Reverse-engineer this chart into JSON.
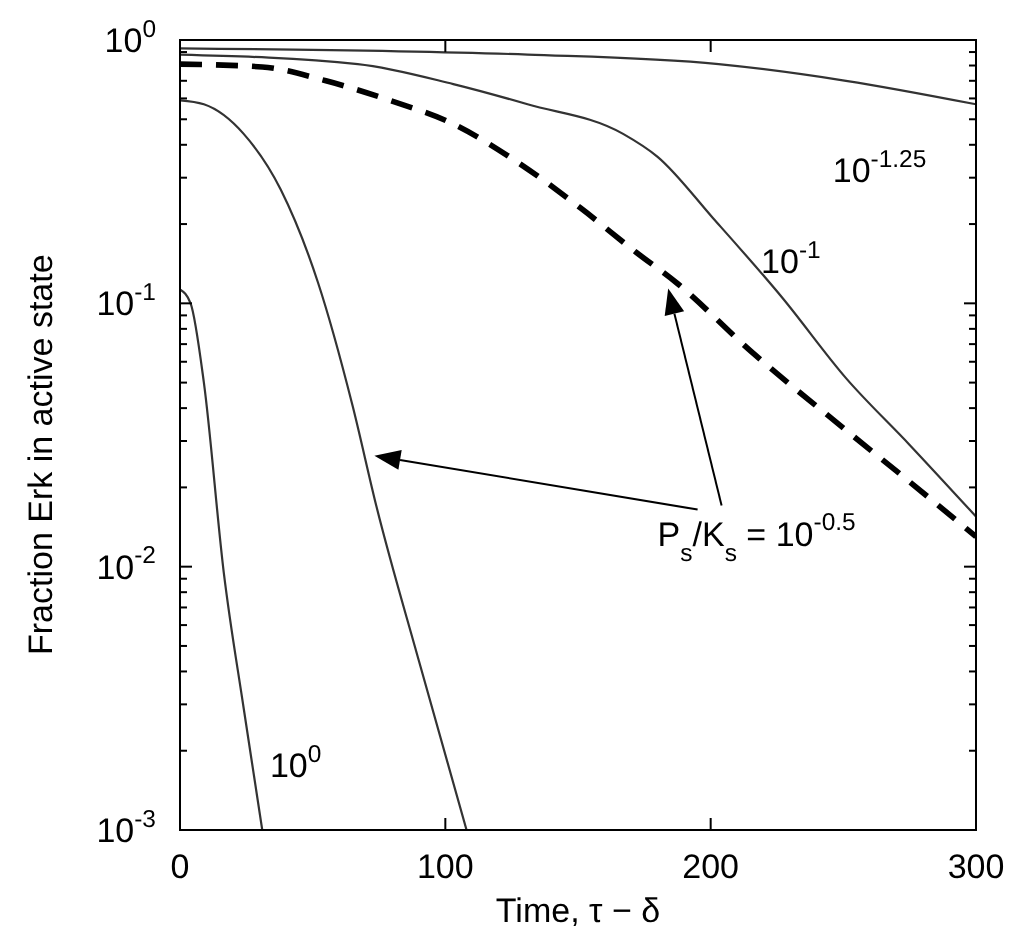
{
  "chart_data": {
    "type": "line",
    "xlabel": "Time, τ − δ",
    "ylabel": "Fraction Erk in active state",
    "log": "y",
    "marker": "none",
    "xlim": [
      0,
      300
    ],
    "xticks": [
      0,
      100,
      200,
      300
    ],
    "ylim": [
      0.001,
      1
    ],
    "yticks": [
      {
        "value": 0.001,
        "label": "10$^{-3}$"
      },
      {
        "value": 0.002,
        "label": null
      },
      {
        "value": 0.003,
        "label": null
      },
      {
        "value": 0.004,
        "label": null
      },
      {
        "value": 0.005,
        "label": null
      },
      {
        "value": 0.006,
        "label": null
      },
      {
        "value": 0.007,
        "label": null
      },
      {
        "value": 0.008,
        "label": null
      },
      {
        "value": 0.009,
        "label": null
      },
      {
        "value": 0.01,
        "label": "10$^{-2}$"
      },
      {
        "value": 0.02,
        "label": null
      },
      {
        "value": 0.03,
        "label": null
      },
      {
        "value": 0.04,
        "label": null
      },
      {
        "value": 0.05,
        "label": null
      },
      {
        "value": 0.06,
        "label": null
      },
      {
        "value": 0.07,
        "label": null
      },
      {
        "value": 0.08,
        "label": null
      },
      {
        "value": 0.09,
        "label": null
      },
      {
        "value": 0.1,
        "label": "10$^{-1}$"
      },
      {
        "value": 0.2,
        "label": null
      },
      {
        "value": 0.3,
        "label": null
      },
      {
        "value": 0.4,
        "label": null
      },
      {
        "value": 0.5,
        "label": null
      },
      {
        "value": 0.6,
        "label": null
      },
      {
        "value": 0.7,
        "label": null
      },
      {
        "value": 0.8,
        "label": null
      },
      {
        "value": 0.9,
        "label": null
      },
      {
        "value": 1,
        "label": "10$^{0}$"
      }
    ],
    "series": [
      {
        "color": "#333333",
        "line_style": "solid",
        "x": [
          0,
          4,
          9,
          16.5,
          24,
          31
        ],
        "values": [
          0.113,
          0.1,
          0.05,
          0.0095,
          0.0029,
          0.001
        ]
      },
      {
        "color": "#333333",
        "line_style": "solid",
        "x": [
          0,
          9,
          24,
          38,
          52,
          65,
          74,
          90,
          108
        ],
        "values": [
          0.59,
          0.57,
          0.44,
          0.27,
          0.12,
          0.041,
          0.017,
          0.0044,
          0.001
        ]
      },
      {
        "color": "#000000",
        "line_style": "dashed",
        "x": [
          0,
          31,
          55,
          79,
          103,
          126,
          151,
          172,
          187,
          215,
          251,
          275,
          300
        ],
        "values": [
          0.81,
          0.79,
          0.7,
          0.59,
          0.48,
          0.35,
          0.23,
          0.156,
          0.12,
          0.066,
          0.033,
          0.021,
          0.013
        ]
      },
      {
        "color": "#333333",
        "line_style": "solid",
        "x": [
          0,
          67,
          103,
          131,
          167,
          180,
          201,
          227,
          251,
          275,
          300
        ],
        "values": [
          0.88,
          0.81,
          0.68,
          0.57,
          0.44,
          0.36,
          0.21,
          0.105,
          0.052,
          0.029,
          0.0155
        ]
      },
      {
        "color": "#333333",
        "line_style": "solid",
        "x": [
          0,
          131,
          203,
          251,
          300
        ],
        "values": [
          0.93,
          0.88,
          0.81,
          0.7,
          0.57
        ]
      }
    ],
    "annotations": [
      "10$^{0}$",
      "10$^{-1}$",
      "10$^{-1.25}$",
      "P$_{s}$/K$_{s}$ = 10$^{-0.5}$"
    ]
  }
}
